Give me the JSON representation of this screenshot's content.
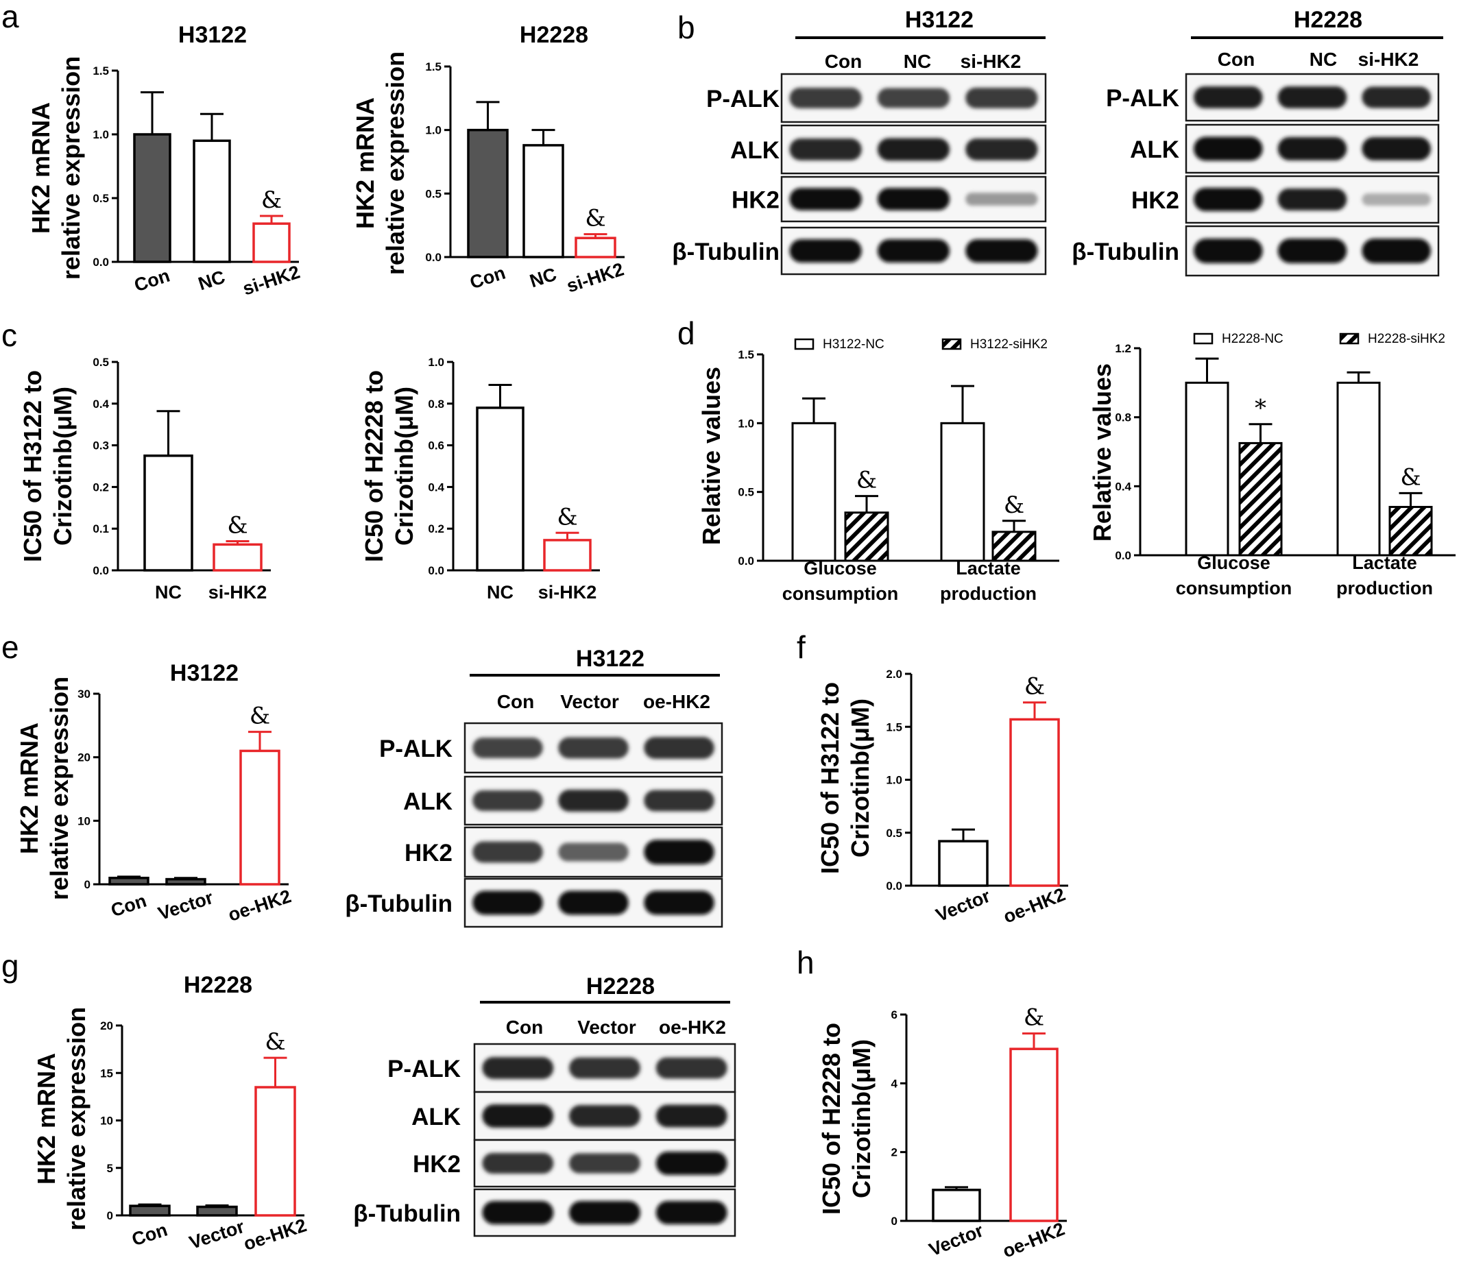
{
  "panel_letters": [
    "a",
    "b",
    "c",
    "d",
    "e",
    "f",
    "g",
    "h"
  ],
  "colors": {
    "dark": "#555555",
    "open": "#ffffff",
    "red": "#e8262a",
    "axis": "#000000"
  },
  "chart_data": [
    {
      "id": "a1",
      "type": "bar",
      "title": "H3122",
      "ylabel": [
        "HK2 mRNA",
        "relative expression"
      ],
      "categories": [
        "Con",
        "NC",
        "si-HK2"
      ],
      "values": [
        1.0,
        0.95,
        0.3
      ],
      "errors": [
        0.33,
        0.21,
        0.06
      ],
      "styles": [
        "dark",
        "open",
        "red"
      ],
      "annotations": [
        "",
        "",
        "&"
      ],
      "ylim": [
        0,
        1.5
      ],
      "yticks": [
        "0.0",
        "0.5",
        "1.0",
        "1.5"
      ],
      "legend": []
    },
    {
      "id": "a2",
      "type": "bar",
      "title": "H2228",
      "ylabel": [
        "HK2 mRNA",
        "relative expression"
      ],
      "categories": [
        "Con",
        "NC",
        "si-HK2"
      ],
      "values": [
        1.0,
        0.88,
        0.15
      ],
      "errors": [
        0.22,
        0.12,
        0.03
      ],
      "styles": [
        "dark",
        "open",
        "red"
      ],
      "annotations": [
        "",
        "",
        "&"
      ],
      "ylim": [
        0,
        1.5
      ],
      "yticks": [
        "0.0",
        "0.5",
        "1.0",
        "1.5"
      ],
      "legend": []
    },
    {
      "id": "c1",
      "type": "bar",
      "title": "",
      "ylabel": [
        "IC50 of H3122 to",
        "Crizotinb(μM)"
      ],
      "categories": [
        "NC",
        "si-HK2"
      ],
      "values": [
        0.275,
        0.062
      ],
      "errors": [
        0.107,
        0.008
      ],
      "styles": [
        "open",
        "red"
      ],
      "annotations": [
        "",
        "&"
      ],
      "ylim": [
        0,
        0.5
      ],
      "yticks": [
        "0.0",
        "0.1",
        "0.2",
        "0.3",
        "0.4",
        "0.5"
      ],
      "legend": []
    },
    {
      "id": "c2",
      "type": "bar",
      "title": "",
      "ylabel": [
        "IC50 of H2228 to",
        "Crizotinb(μM)"
      ],
      "categories": [
        "NC",
        "si-HK2"
      ],
      "values": [
        0.78,
        0.145
      ],
      "errors": [
        0.11,
        0.035
      ],
      "styles": [
        "open",
        "red"
      ],
      "annotations": [
        "",
        "&"
      ],
      "ylim": [
        0,
        1.0
      ],
      "yticks": [
        "0.0",
        "0.2",
        "0.4",
        "0.6",
        "0.8",
        "1.0"
      ],
      "legend": []
    },
    {
      "id": "d1",
      "type": "bar",
      "title": "",
      "ylabel": [
        "Relative values"
      ],
      "categories": [
        [
          "Glucose",
          "consumption"
        ],
        [
          "Lactate",
          "production"
        ]
      ],
      "series": [
        {
          "name": "H3122-NC",
          "values": [
            1.0,
            1.0
          ],
          "errors": [
            0.18,
            0.27
          ],
          "style": "open"
        },
        {
          "name": "H3122-siHK2",
          "values": [
            0.35,
            0.21
          ],
          "errors": [
            0.12,
            0.08
          ],
          "style": "hatch"
        }
      ],
      "annotations": [
        [
          "",
          "&"
        ],
        [
          "",
          "&"
        ]
      ],
      "ylim": [
        0,
        1.5
      ],
      "yticks": [
        "0.0",
        "0.5",
        "1.0",
        "1.5"
      ],
      "legend": [
        "H3122-NC",
        "H3122-siHK2"
      ]
    },
    {
      "id": "d2",
      "type": "bar",
      "title": "",
      "ylabel": [
        "Relative values"
      ],
      "categories": [
        [
          "Glucose",
          "consumption"
        ],
        [
          "Lactate",
          "production"
        ]
      ],
      "series": [
        {
          "name": "H2228-NC",
          "values": [
            1.0,
            1.0
          ],
          "errors": [
            0.14,
            0.06
          ],
          "style": "open"
        },
        {
          "name": "H2228-siHK2",
          "values": [
            0.65,
            0.28
          ],
          "errors": [
            0.11,
            0.08
          ],
          "style": "hatch"
        }
      ],
      "annotations": [
        [
          "",
          "*"
        ],
        [
          "",
          "&"
        ]
      ],
      "ylim": [
        0,
        1.2
      ],
      "yticks": [
        "0.0",
        "0.4",
        "0.8",
        "1.2"
      ],
      "legend": [
        "H2228-NC",
        "H2228-siHK2"
      ]
    },
    {
      "id": "e1",
      "type": "bar",
      "title": "H3122",
      "ylabel": [
        "HK2 mRNA",
        "relative expression"
      ],
      "categories": [
        "Con",
        "Vector",
        "oe-HK2"
      ],
      "values": [
        1.0,
        0.8,
        21.0
      ],
      "errors": [
        0.2,
        0.2,
        3.0
      ],
      "styles": [
        "dark",
        "dark",
        "red"
      ],
      "annotations": [
        "",
        "",
        "&"
      ],
      "ylim": [
        0,
        30
      ],
      "yticks": [
        "0",
        "10",
        "20",
        "30"
      ],
      "legend": []
    },
    {
      "id": "f1",
      "type": "bar",
      "title": "",
      "ylabel": [
        "IC50 of H3122 to",
        "Crizotinb(μM)"
      ],
      "categories": [
        "Vector",
        "oe-HK2"
      ],
      "values": [
        0.42,
        1.57
      ],
      "errors": [
        0.11,
        0.16
      ],
      "styles": [
        "open",
        "red"
      ],
      "annotations": [
        "",
        "&"
      ],
      "ylim": [
        0,
        2.0
      ],
      "yticks": [
        "0.0",
        "0.5",
        "1.0",
        "1.5",
        "2.0"
      ],
      "legend": []
    },
    {
      "id": "g1",
      "type": "bar",
      "title": "H2228",
      "ylabel": [
        "HK2 mRNA",
        "relative expression"
      ],
      "categories": [
        "Con",
        "Vector",
        "oe-HK2"
      ],
      "values": [
        1.0,
        0.9,
        13.5
      ],
      "errors": [
        0.15,
        0.15,
        3.1
      ],
      "styles": [
        "dark",
        "dark",
        "red"
      ],
      "annotations": [
        "",
        "",
        "&"
      ],
      "ylim": [
        0,
        20
      ],
      "yticks": [
        "0",
        "5",
        "10",
        "15",
        "20"
      ],
      "legend": []
    },
    {
      "id": "h1",
      "type": "bar",
      "title": "",
      "ylabel": [
        "IC50 of H2228 to",
        "Crizotinb(μM)"
      ],
      "categories": [
        "Vector",
        "oe-HK2"
      ],
      "values": [
        0.9,
        5.0
      ],
      "errors": [
        0.08,
        0.45
      ],
      "styles": [
        "open",
        "red"
      ],
      "annotations": [
        "",
        "&"
      ],
      "ylim": [
        0,
        6
      ],
      "yticks": [
        "0",
        "2",
        "4",
        "6"
      ],
      "legend": []
    }
  ],
  "blots": [
    {
      "id": "b1",
      "title": "H3122",
      "lanes": [
        "Con",
        "NC",
        "si-HK2"
      ],
      "rows": [
        {
          "name": "P-ALK",
          "intensity": [
            0.75,
            0.7,
            0.75
          ]
        },
        {
          "name": "ALK",
          "intensity": [
            0.85,
            0.9,
            0.85
          ]
        },
        {
          "name": "HK2",
          "intensity": [
            1.0,
            1.0,
            0.25
          ]
        },
        {
          "name": "β-Tubulin",
          "intensity": [
            1.0,
            1.0,
            1.0
          ]
        }
      ]
    },
    {
      "id": "b2",
      "title": "H2228",
      "lanes": [
        "Con",
        "NC",
        "si-HK2"
      ],
      "rows": [
        {
          "name": "P-ALK",
          "intensity": [
            0.9,
            0.9,
            0.85
          ]
        },
        {
          "name": "ALK",
          "intensity": [
            1.0,
            0.95,
            0.95
          ]
        },
        {
          "name": "HK2",
          "intensity": [
            1.0,
            0.9,
            0.15
          ]
        },
        {
          "name": "β-Tubulin",
          "intensity": [
            1.0,
            1.0,
            1.0
          ]
        }
      ]
    },
    {
      "id": "e2",
      "title": "H3122",
      "lanes": [
        "Con",
        "Vector",
        "oe-HK2"
      ],
      "rows": [
        {
          "name": "P-ALK",
          "intensity": [
            0.7,
            0.75,
            0.8
          ]
        },
        {
          "name": "ALK",
          "intensity": [
            0.75,
            0.85,
            0.8
          ]
        },
        {
          "name": "HK2",
          "intensity": [
            0.75,
            0.55,
            1.0
          ]
        },
        {
          "name": "β-Tubulin",
          "intensity": [
            1.0,
            1.0,
            1.0
          ]
        }
      ]
    },
    {
      "id": "g2",
      "title": "H2228",
      "lanes": [
        "Con",
        "Vector",
        "oe-HK2"
      ],
      "rows": [
        {
          "name": "P-ALK",
          "intensity": [
            0.85,
            0.8,
            0.8
          ]
        },
        {
          "name": "ALK",
          "intensity": [
            0.95,
            0.85,
            0.9
          ]
        },
        {
          "name": "HK2",
          "intensity": [
            0.8,
            0.75,
            1.0
          ]
        },
        {
          "name": "β-Tubulin",
          "intensity": [
            1.0,
            1.0,
            1.0
          ]
        }
      ]
    }
  ]
}
